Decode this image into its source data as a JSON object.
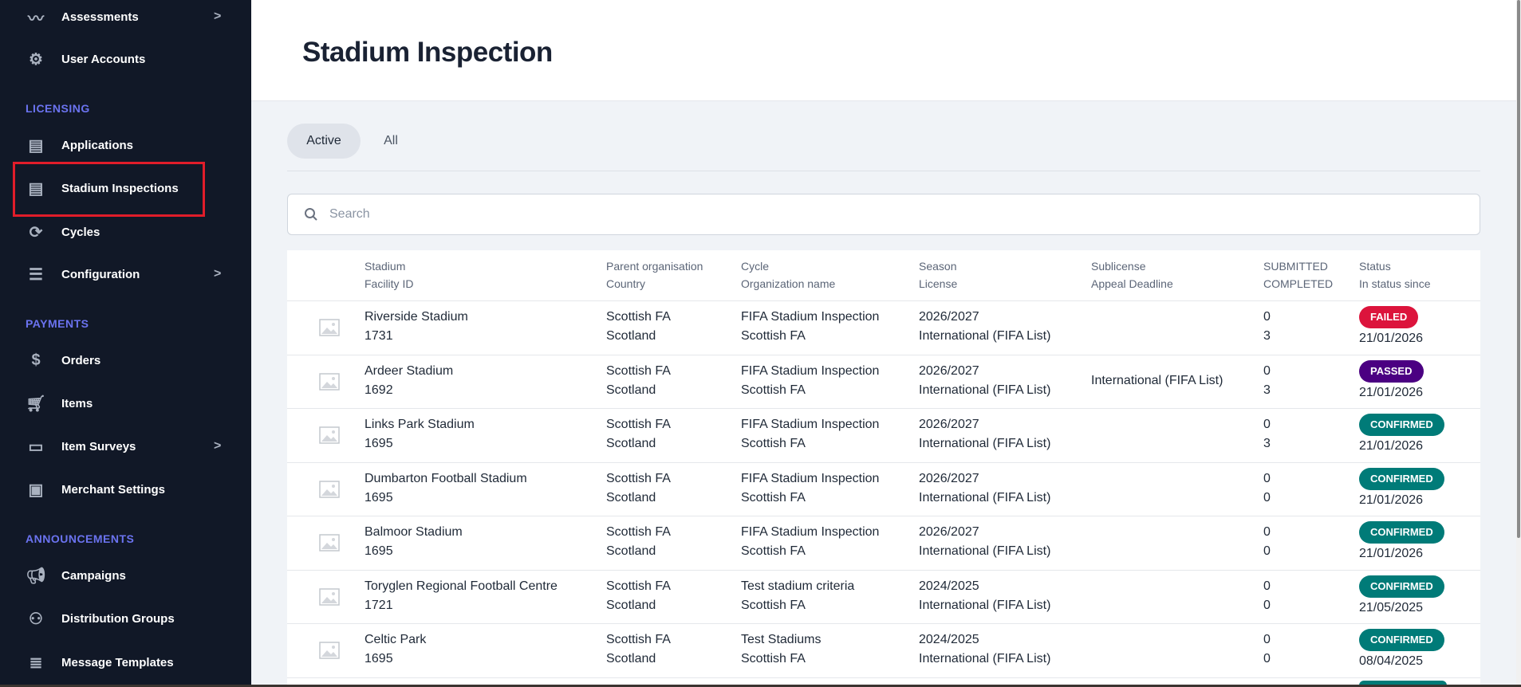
{
  "sidebar": {
    "items": [
      {
        "label": "Assessments",
        "icon": "trend-icon",
        "chevron": ">"
      },
      {
        "label": "User Accounts",
        "icon": "user-gear-icon"
      },
      {
        "label": "Applications",
        "icon": "calendar-list-icon"
      },
      {
        "label": "Stadium Inspections",
        "icon": "calendar-list-icon"
      },
      {
        "label": "Cycles",
        "icon": "refresh-icon"
      },
      {
        "label": "Configuration",
        "icon": "sliders-icon",
        "chevron": ">"
      },
      {
        "label": "Orders",
        "icon": "invoice-icon"
      },
      {
        "label": "Items",
        "icon": "cart-icon"
      },
      {
        "label": "Item Surveys",
        "icon": "chat-icon",
        "chevron": ">"
      },
      {
        "label": "Merchant Settings",
        "icon": "cash-icon"
      },
      {
        "label": "Campaigns",
        "icon": "megaphone-icon"
      },
      {
        "label": "Distribution Groups",
        "icon": "group-icon"
      },
      {
        "label": "Message Templates",
        "icon": "list-icon"
      }
    ],
    "sections": {
      "licensing": "LICENSING",
      "payments": "PAYMENTS",
      "announcements": "ANNOUNCEMENTS"
    },
    "highlight_color": "#e11d2a"
  },
  "header": {
    "title": "Stadium Inspection"
  },
  "tabs": [
    {
      "label": "Active",
      "active": true
    },
    {
      "label": "All",
      "active": false
    }
  ],
  "search": {
    "placeholder": "Search",
    "value": ""
  },
  "table": {
    "headers": [
      [
        "Stadium",
        "Facility ID"
      ],
      [
        "Parent organisation",
        "Country"
      ],
      [
        "Cycle",
        "Organization name"
      ],
      [
        "Season",
        "License"
      ],
      [
        "Sublicense",
        "Appeal Deadline"
      ],
      [
        "SUBMITTED",
        "COMPLETED"
      ],
      [
        "Status",
        "In status since"
      ]
    ],
    "rows": [
      {
        "stadium": "Riverside Stadium",
        "facility_id": "1731",
        "parent": "Scottish FA",
        "country": "Scotland",
        "cycle": "FIFA Stadium Inspection",
        "org": "Scottish FA",
        "season": "2026/2027",
        "license": "International (FIFA List)",
        "sublicense": "",
        "submitted": "0",
        "completed": "3",
        "status": "FAILED",
        "status_color": "#dc143c",
        "since": "21/01/2026"
      },
      {
        "stadium": "Ardeer Stadium",
        "facility_id": "1692",
        "parent": "Scottish FA",
        "country": "Scotland",
        "cycle": "FIFA Stadium Inspection",
        "org": "Scottish FA",
        "season": "2026/2027",
        "license": "International (FIFA List)",
        "sublicense": "International (FIFA List)",
        "submitted": "0",
        "completed": "3",
        "status": "PASSED",
        "status_color": "#4b0082",
        "since": "21/01/2026"
      },
      {
        "stadium": "Links Park Stadium",
        "facility_id": "1695",
        "parent": "Scottish FA",
        "country": "Scotland",
        "cycle": "FIFA Stadium Inspection",
        "org": "Scottish FA",
        "season": "2026/2027",
        "license": "International (FIFA List)",
        "sublicense": "",
        "submitted": "0",
        "completed": "3",
        "status": "CONFIRMED",
        "status_color": "#007b78",
        "since": "21/01/2026"
      },
      {
        "stadium": "Dumbarton Football Stadium",
        "facility_id": "1695",
        "parent": "Scottish FA",
        "country": "Scotland",
        "cycle": "FIFA Stadium Inspection",
        "org": "Scottish FA",
        "season": "2026/2027",
        "license": "International (FIFA List)",
        "sublicense": "",
        "submitted": "0",
        "completed": "0",
        "status": "CONFIRMED",
        "status_color": "#007b78",
        "since": "21/01/2026"
      },
      {
        "stadium": "Balmoor Stadium",
        "facility_id": "1695",
        "parent": "Scottish FA",
        "country": "Scotland",
        "cycle": "FIFA Stadium Inspection",
        "org": "Scottish FA",
        "season": "2026/2027",
        "license": "International (FIFA List)",
        "sublicense": "",
        "submitted": "0",
        "completed": "0",
        "status": "CONFIRMED",
        "status_color": "#007b78",
        "since": "21/01/2026"
      },
      {
        "stadium": "Toryglen Regional Football Centre",
        "facility_id": "1721",
        "parent": "Scottish FA",
        "country": "Scotland",
        "cycle": "Test stadium criteria",
        "org": "Scottish FA",
        "season": "2024/2025",
        "license": "International (FIFA List)",
        "sublicense": "",
        "submitted": "0",
        "completed": "0",
        "status": "CONFIRMED",
        "status_color": "#007b78",
        "since": "21/05/2025"
      },
      {
        "stadium": "Celtic Park",
        "facility_id": "1695",
        "parent": "Scottish FA",
        "country": "Scotland",
        "cycle": "Test Stadiums",
        "org": "Scottish FA",
        "season": "2024/2025",
        "license": "International (FIFA List)",
        "sublicense": "",
        "submitted": "0",
        "completed": "0",
        "status": "CONFIRMED",
        "status_color": "#007b78",
        "since": "08/04/2025"
      }
    ]
  }
}
